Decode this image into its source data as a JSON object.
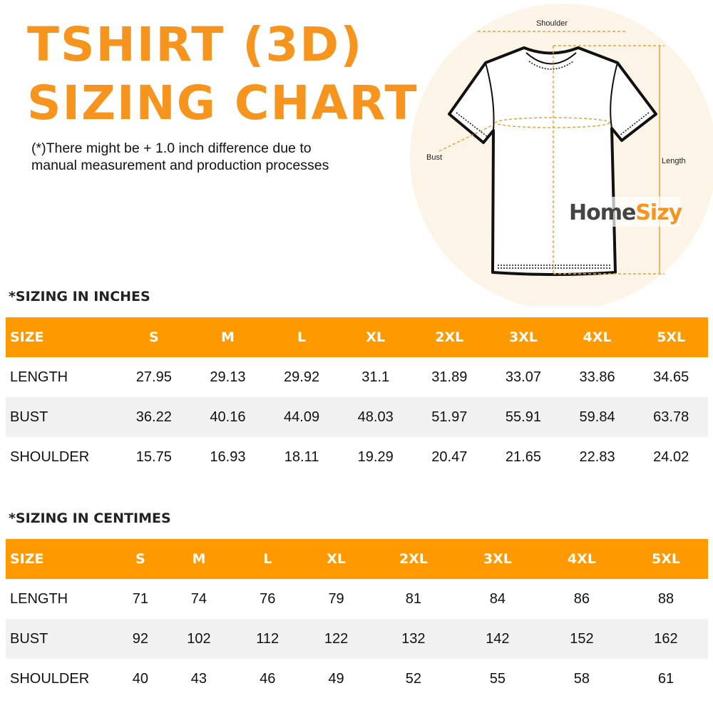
{
  "title_line1": "TSHIRT (3D)",
  "title_line2": "SIZING CHART",
  "note_line1": "(*)There might be + 1.0 inch difference due to",
  "note_line2": "manual measurement and production processes",
  "diagram": {
    "shoulder": "Shoulder",
    "bust": "Bust",
    "length": "Length",
    "logo_home": "Home",
    "logo_sizy": "Sizy"
  },
  "colors": {
    "accent": "#ff9900",
    "title": "#f7941d",
    "stripe": "#f1f1f1"
  },
  "tables": [
    {
      "heading": "*SIZING IN INCHES",
      "headers": [
        "SIZE",
        "S",
        "M",
        "L",
        "XL",
        "2XL",
        "3XL",
        "4XL",
        "5XL"
      ],
      "rows": [
        [
          "LENGTH",
          "27.95",
          "29.13",
          "29.92",
          "31.1",
          "31.89",
          "33.07",
          "33.86",
          "34.65"
        ],
        [
          "BUST",
          "36.22",
          "40.16",
          "44.09",
          "48.03",
          "51.97",
          "55.91",
          "59.84",
          "63.78"
        ],
        [
          "SHOULDER",
          "15.75",
          "16.93",
          "18.11",
          "19.29",
          "20.47",
          "21.65",
          "22.83",
          "24.02"
        ]
      ]
    },
    {
      "heading": "*SIZING IN CENTIMES",
      "headers": [
        "SIZE",
        "S",
        "M",
        "L",
        "XL",
        "2XL",
        "3XL",
        "4XL",
        "5XL"
      ],
      "rows": [
        [
          "LENGTH",
          "71",
          "74",
          "76",
          "79",
          "81",
          "84",
          "86",
          "88"
        ],
        [
          "BUST",
          "92",
          "102",
          "112",
          "122",
          "132",
          "142",
          "152",
          "162"
        ],
        [
          "SHOULDER",
          "40",
          "43",
          "46",
          "49",
          "52",
          "55",
          "58",
          "61"
        ]
      ]
    }
  ]
}
